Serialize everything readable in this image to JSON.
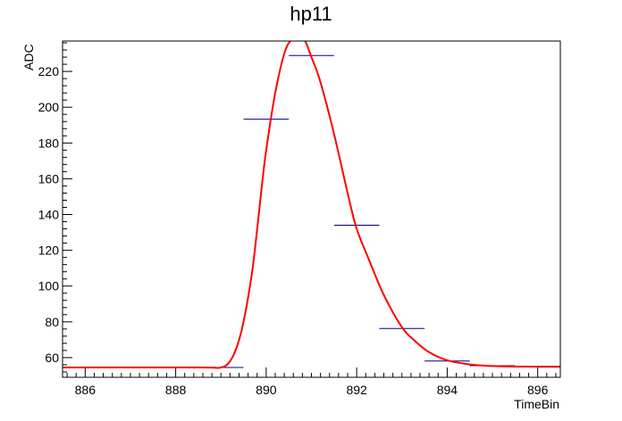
{
  "chart_data": {
    "type": "line",
    "title": "hp11",
    "xlabel": "TimeBin",
    "ylabel": "ADC",
    "xlim": [
      885.5,
      896.5
    ],
    "ylim": [
      49,
      237
    ],
    "x_ticks": [
      "886",
      "888",
      "890",
      "892",
      "894",
      "896"
    ],
    "y_ticks": [
      "60",
      "80",
      "100",
      "120",
      "140",
      "160",
      "180",
      "200",
      "220"
    ],
    "grid": false,
    "colors": {
      "histogram": "#000080",
      "fit": "#ff0000",
      "axes": "#000000"
    },
    "series": [
      {
        "kind": "histogram",
        "bin_width": 1,
        "x": [
          886,
          887,
          888,
          889,
          890,
          891,
          892,
          893,
          894,
          895,
          896
        ],
        "values": [
          54.5,
          54.5,
          54.5,
          54.5,
          193.3,
          228.9,
          134.0,
          76.3,
          58.1,
          55.5,
          55.2
        ]
      },
      {
        "kind": "fit",
        "x": [
          885.5,
          888.5,
          889.0,
          889.2,
          889.35,
          889.5,
          889.7,
          889.9,
          890.0,
          890.2,
          890.4,
          890.55,
          890.7,
          890.85,
          891.0,
          891.2,
          891.5,
          891.8,
          892.0,
          892.3,
          892.6,
          893.0,
          893.3,
          893.6,
          894.0,
          894.5,
          895.0,
          895.5,
          896.5
        ],
        "values": [
          54.5,
          54.5,
          54.5,
          58.0,
          66.0,
          80.0,
          110.0,
          155.0,
          176.0,
          208.0,
          230.0,
          237.5,
          239.0,
          237.5,
          228.0,
          214.0,
          185.0,
          152.0,
          132.0,
          113.0,
          95.0,
          77.0,
          69.0,
          63.0,
          58.5,
          56.2,
          55.3,
          55.0,
          54.9
        ]
      }
    ]
  }
}
